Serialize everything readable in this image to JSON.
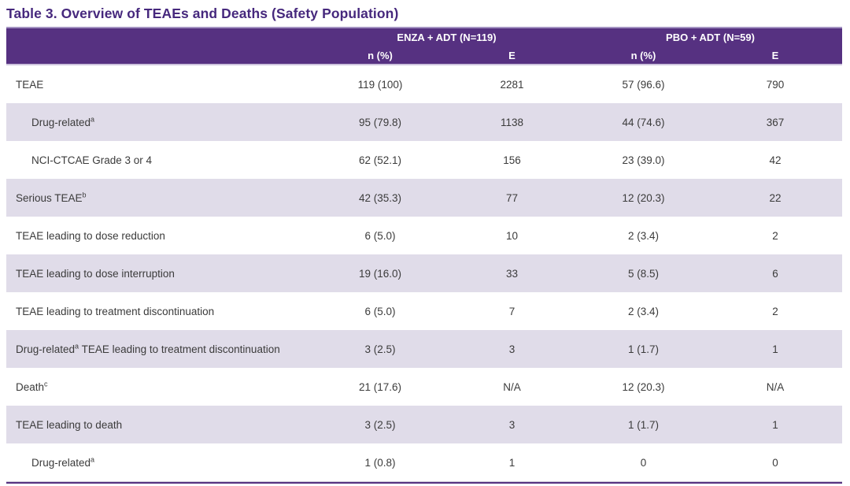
{
  "title": "Table 3. Overview of TEAEs and Deaths (Safety Population)",
  "colors": {
    "header_background": "#563181",
    "title_text": "#46287d",
    "alt_row_background": "#e0dce9",
    "body_text": "#3b3b3b"
  },
  "table": {
    "groups": [
      {
        "label": "ENZA + ADT (N=119)"
      },
      {
        "label": "PBO + ADT (N=59)"
      }
    ],
    "subheaders": [
      "n (%)",
      "E",
      "n (%)",
      "E"
    ],
    "rows": [
      {
        "pre": "TEAE",
        "sup": "",
        "post": "",
        "indent": false,
        "values": [
          "119 (100)",
          "2281",
          "57 (96.6)",
          "790"
        ]
      },
      {
        "pre": "Drug-related",
        "sup": "a",
        "post": "",
        "indent": true,
        "values": [
          "95 (79.8)",
          "1138",
          "44 (74.6)",
          "367"
        ]
      },
      {
        "pre": "NCI-CTCAE Grade 3 or 4",
        "sup": "",
        "post": "",
        "indent": true,
        "values": [
          "62 (52.1)",
          "156",
          "23 (39.0)",
          "42"
        ]
      },
      {
        "pre": "Serious TEAE",
        "sup": "b",
        "post": "",
        "indent": false,
        "values": [
          "42 (35.3)",
          "77",
          "12 (20.3)",
          "22"
        ]
      },
      {
        "pre": "TEAE leading to dose reduction",
        "sup": "",
        "post": "",
        "indent": false,
        "values": [
          "6 (5.0)",
          "10",
          "2 (3.4)",
          "2"
        ]
      },
      {
        "pre": "TEAE leading to dose interruption",
        "sup": "",
        "post": "",
        "indent": false,
        "values": [
          "19 (16.0)",
          "33",
          "5 (8.5)",
          "6"
        ]
      },
      {
        "pre": "TEAE leading to treatment discontinuation",
        "sup": "",
        "post": "",
        "indent": false,
        "values": [
          "6 (5.0)",
          "7",
          "2 (3.4)",
          "2"
        ]
      },
      {
        "pre": "Drug-related",
        "sup": "a",
        "post": " TEAE leading to treatment discontinuation",
        "indent": false,
        "values": [
          "3 (2.5)",
          "3",
          "1 (1.7)",
          "1"
        ]
      },
      {
        "pre": "Death",
        "sup": "c",
        "post": "",
        "indent": false,
        "values": [
          "21 (17.6)",
          "N/A",
          "12 (20.3)",
          "N/A"
        ]
      },
      {
        "pre": "TEAE leading to death",
        "sup": "",
        "post": "",
        "indent": false,
        "values": [
          "3 (2.5)",
          "3",
          "1 (1.7)",
          "1"
        ]
      },
      {
        "pre": "Drug-related",
        "sup": "a",
        "post": "",
        "indent": true,
        "values": [
          "1 (0.8)",
          "1",
          "0",
          "0"
        ]
      }
    ]
  }
}
